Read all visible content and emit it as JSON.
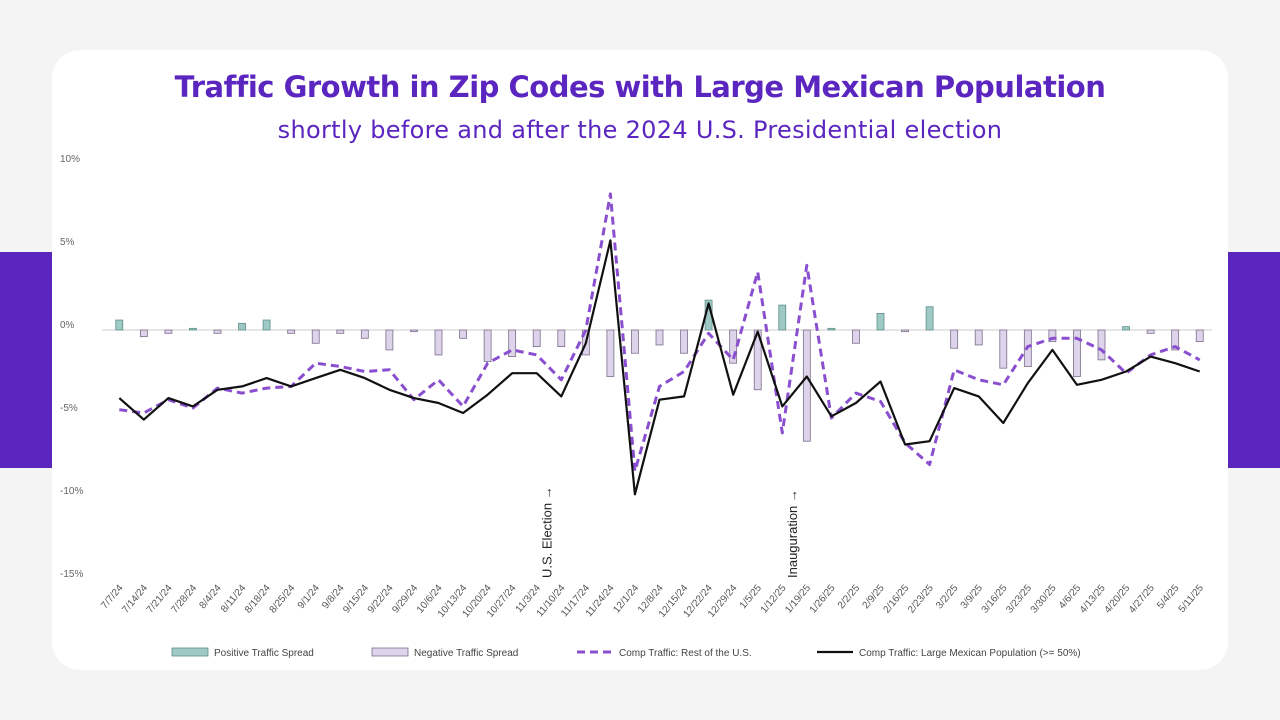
{
  "title": "Traffic Growth in Zip Codes with Large Mexican Population",
  "subtitle": "shortly before and after the 2024 U.S. Presidential election",
  "colors": {
    "accent": "#5b25c0",
    "positive_fill": "#9ec9c4",
    "negative_fill": "#ddd3ea",
    "rest_line": "#8a4fcf",
    "mexican_line": "#111111"
  },
  "chart_data": {
    "type": "line",
    "ylim": [
      -15,
      10
    ],
    "yticks": [
      10,
      5,
      0,
      -5,
      -10,
      -15
    ],
    "ytick_labels": [
      "10%",
      "5%",
      "0%",
      "-5%",
      "-10%",
      "-15%"
    ],
    "grid": false,
    "categories": [
      "7/7/24",
      "7/14/24",
      "7/21/24",
      "7/28/24",
      "8/4/24",
      "8/11/24",
      "8/18/24",
      "8/25/24",
      "9/1/24",
      "9/8/24",
      "9/15/24",
      "9/22/24",
      "9/29/24",
      "10/6/24",
      "10/13/24",
      "10/20/24",
      "10/27/24",
      "11/3/24",
      "11/10/24",
      "11/17/24",
      "11/24/24",
      "12/1/24",
      "12/8/24",
      "12/15/24",
      "12/22/24",
      "12/29/24",
      "1/5/25",
      "1/12/25",
      "1/19/25",
      "1/26/25",
      "2/2/25",
      "2/9/25",
      "2/16/25",
      "2/23/25",
      "3/2/25",
      "3/9/25",
      "3/16/25",
      "3/23/25",
      "3/30/25",
      "4/6/25",
      "4/13/25",
      "4/20/25",
      "4/27/25",
      "5/4/25",
      "5/11/25"
    ],
    "series": [
      {
        "name": "Positive Traffic Spread",
        "kind": "bar",
        "values": [
          0.6,
          0,
          0,
          0.1,
          0,
          0.4,
          0.6,
          0,
          0,
          0,
          0,
          0,
          0,
          0,
          0,
          0,
          0,
          0,
          0,
          0,
          0,
          0,
          0,
          0,
          1.8,
          0,
          0,
          1.5,
          0,
          0.1,
          0,
          1.0,
          0,
          1.4,
          0,
          0,
          0,
          0,
          0,
          0,
          0,
          0.2,
          0,
          0,
          0
        ]
      },
      {
        "name": "Negative Traffic Spread",
        "kind": "bar",
        "values": [
          0,
          -0.4,
          -0.2,
          0,
          -0.2,
          0,
          0,
          -0.2,
          -0.8,
          -0.2,
          -0.5,
          -1.2,
          -0.1,
          -1.5,
          -0.5,
          -1.9,
          -1.6,
          -1.0,
          -1.0,
          -1.5,
          -2.8,
          -1.4,
          -0.9,
          -1.4,
          0,
          -2.0,
          -3.6,
          0,
          -6.7,
          0,
          -0.8,
          0,
          -0.1,
          0,
          -1.1,
          -0.9,
          -2.3,
          -2.2,
          -0.7,
          -2.8,
          -1.8,
          0,
          -0.2,
          -1.2,
          -0.7
        ]
      },
      {
        "name": "Comp Traffic: Rest of the U.S.",
        "kind": "line",
        "style": "dashed",
        "values": [
          -4.8,
          -5.0,
          -4.2,
          -4.7,
          -3.5,
          -3.8,
          -3.5,
          -3.4,
          -2.0,
          -2.2,
          -2.5,
          -2.4,
          -4.2,
          -3.0,
          -4.6,
          -2.0,
          -1.2,
          -1.5,
          -3.0,
          0.0,
          8.2,
          -8.5,
          -3.4,
          -2.5,
          -0.2,
          -1.8,
          3.5,
          -6.2,
          3.9,
          -5.3,
          -3.8,
          -4.3,
          -6.8,
          -8.1,
          -2.4,
          -3.0,
          -3.3,
          -1.0,
          -0.5,
          -0.5,
          -1.2,
          -2.6,
          -1.5,
          -1.0,
          -1.8
        ]
      },
      {
        "name": "Comp Traffic: Large Mexican Population (>= 50%)",
        "kind": "line",
        "style": "solid",
        "values": [
          -4.1,
          -5.4,
          -4.1,
          -4.6,
          -3.6,
          -3.4,
          -2.9,
          -3.4,
          -2.9,
          -2.4,
          -2.9,
          -3.6,
          -4.1,
          -4.4,
          -5.0,
          -3.9,
          -2.6,
          -2.6,
          -4.0,
          -0.8,
          5.4,
          -9.9,
          -4.2,
          -4.0,
          1.6,
          -3.9,
          -0.1,
          -4.6,
          -2.8,
          -5.2,
          -4.4,
          -3.1,
          -6.9,
          -6.7,
          -3.5,
          -4.0,
          -5.6,
          -3.2,
          -1.2,
          -3.3,
          -3.0,
          -2.5,
          -1.6,
          -2.0,
          -2.5
        ]
      }
    ],
    "annotations": [
      {
        "text": "U.S. Election →",
        "at": "11/10/24"
      },
      {
        "text": "Inauguration →",
        "at": "1/19/25"
      }
    ],
    "legend": {
      "placement": "bottom",
      "entries": [
        "Positive Traffic Spread",
        "Negative Traffic Spread",
        "Comp Traffic: Rest of the U.S.",
        "Comp Traffic: Large Mexican Population (>= 50%)"
      ]
    }
  }
}
